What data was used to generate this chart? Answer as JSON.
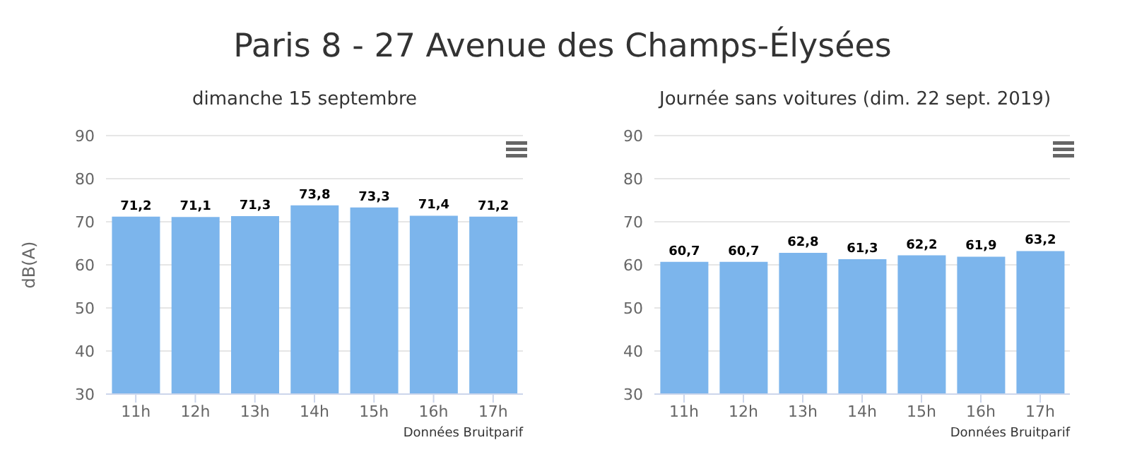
{
  "chart_data": [
    {
      "type": "bar",
      "title": "Paris 8 - 27 Avenue des Champs-Élysées",
      "subtitle": "dimanche 15 septembre",
      "ylabel": "dB(A)",
      "categories": [
        "11h",
        "12h",
        "13h",
        "14h",
        "15h",
        "16h",
        "17h"
      ],
      "values": [
        71.2,
        71.1,
        71.3,
        73.8,
        73.3,
        71.4,
        71.2
      ],
      "value_labels": [
        "71,2",
        "71,1",
        "71,3",
        "73,8",
        "73,3",
        "71,4",
        "71,2"
      ],
      "color": "#7cb5ec",
      "ylim": [
        30,
        90
      ],
      "yticks": [
        30,
        40,
        50,
        60,
        70,
        80,
        90
      ],
      "grid": "y",
      "annotations": [
        "Données Bruitparif"
      ]
    },
    {
      "type": "bar",
      "subtitle": "Journée sans voitures (dim. 22 sept. 2019)",
      "categories": [
        "11h",
        "12h",
        "13h",
        "14h",
        "15h",
        "16h",
        "17h"
      ],
      "values": [
        60.7,
        60.7,
        62.8,
        61.3,
        62.2,
        61.9,
        63.2
      ],
      "value_labels": [
        "60,7",
        "60,7",
        "62,8",
        "61,3",
        "62,2",
        "61,9",
        "63,2"
      ],
      "color": "#7cb5ec",
      "ylim": [
        30,
        90
      ],
      "yticks": [
        30,
        40,
        50,
        60,
        70,
        80,
        90
      ],
      "grid": "y",
      "annotations": [
        "Données Bruitparif"
      ]
    }
  ]
}
